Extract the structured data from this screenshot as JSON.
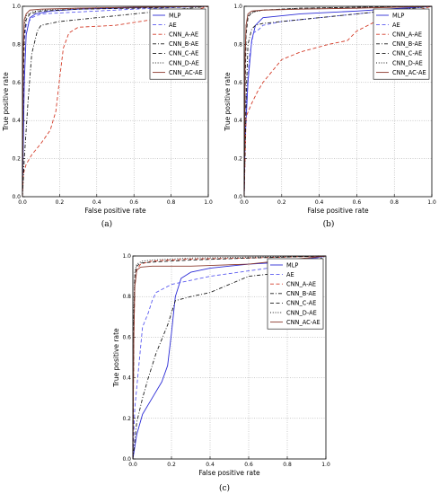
{
  "chart_data": [
    {
      "type": "line",
      "caption": "(a)",
      "xlabel": "False positive rate",
      "ylabel": "True positive rate",
      "xlim": [
        0,
        1
      ],
      "ylim": [
        0,
        1
      ],
      "xticks": [
        "0.0",
        "0.2",
        "0.4",
        "0.6",
        "0.8",
        "1.0"
      ],
      "yticks": [
        "0.0",
        "0.2",
        "0.4",
        "0.6",
        "0.8",
        "1.0"
      ],
      "grid": true,
      "legend_position": "top-right",
      "series": [
        {
          "name": "MLP",
          "color": "#2b2bd6",
          "dash": "solid",
          "x": [
            0,
            0.01,
            0.02,
            0.04,
            0.07,
            0.15,
            0.3,
            0.5,
            0.7,
            1.0
          ],
          "y": [
            0,
            0.6,
            0.85,
            0.94,
            0.96,
            0.975,
            0.985,
            0.99,
            0.995,
            1.0
          ]
        },
        {
          "name": "AE",
          "color": "#5a5af0",
          "dash": "dashed",
          "x": [
            0,
            0.005,
            0.01,
            0.02,
            0.05,
            0.1,
            0.3,
            0.6,
            1.0
          ],
          "y": [
            0,
            0.55,
            0.82,
            0.9,
            0.94,
            0.96,
            0.97,
            0.985,
            1.0
          ]
        },
        {
          "name": "CNN_A-AE",
          "color": "#d43d2a",
          "dash": "dashed",
          "x": [
            0,
            0.005,
            0.02,
            0.05,
            0.1,
            0.15,
            0.18,
            0.2,
            0.22,
            0.25,
            0.3,
            0.5,
            0.7,
            0.9,
            1.0
          ],
          "y": [
            0,
            0.12,
            0.17,
            0.22,
            0.28,
            0.35,
            0.45,
            0.62,
            0.78,
            0.86,
            0.89,
            0.9,
            0.93,
            0.97,
            1.0
          ]
        },
        {
          "name": "CNN_B-AE",
          "color": "#1a1a1a",
          "dash": "dashdot",
          "x": [
            0,
            0.01,
            0.03,
            0.05,
            0.08,
            0.1,
            0.2,
            0.4,
            0.7,
            1.0
          ],
          "y": [
            0,
            0.2,
            0.5,
            0.75,
            0.87,
            0.9,
            0.92,
            0.94,
            0.97,
            1.0
          ]
        },
        {
          "name": "CNN_C-AE",
          "color": "#1a1a1a",
          "dash": "dashed",
          "x": [
            0,
            0.005,
            0.01,
            0.02,
            0.04,
            0.1,
            0.3,
            0.6,
            1.0
          ],
          "y": [
            0,
            0.6,
            0.85,
            0.93,
            0.96,
            0.975,
            0.985,
            0.99,
            1.0
          ]
        },
        {
          "name": "CNN_D-AE",
          "color": "#1a1a1a",
          "dash": "dotted",
          "x": [
            0,
            0.005,
            0.01,
            0.02,
            0.05,
            0.1,
            0.3,
            1.0
          ],
          "y": [
            0,
            0.7,
            0.9,
            0.95,
            0.97,
            0.98,
            0.99,
            1.0
          ]
        },
        {
          "name": "CNN_AC-AE",
          "color": "#8b3a2e",
          "dash": "solid",
          "x": [
            0,
            0.005,
            0.01,
            0.02,
            0.04,
            0.1,
            0.3,
            0.6,
            1.0
          ],
          "y": [
            0,
            0.8,
            0.93,
            0.96,
            0.98,
            0.985,
            0.99,
            0.995,
            1.0
          ]
        }
      ]
    },
    {
      "type": "line",
      "caption": "(b)",
      "xlabel": "False positive rate",
      "ylabel": "True positive rate",
      "xlim": [
        0,
        1
      ],
      "ylim": [
        0,
        1
      ],
      "xticks": [
        "0.0",
        "0.2",
        "0.4",
        "0.6",
        "0.8",
        "1.0"
      ],
      "yticks": [
        "0.0",
        "0.2",
        "0.4",
        "0.6",
        "0.8",
        "1.0"
      ],
      "grid": true,
      "legend_position": "top-right",
      "series": [
        {
          "name": "MLP",
          "color": "#2b2bd6",
          "dash": "solid",
          "x": [
            0,
            0.005,
            0.02,
            0.04,
            0.06,
            0.1,
            0.3,
            0.6,
            1.0
          ],
          "y": [
            0,
            0.3,
            0.6,
            0.82,
            0.9,
            0.94,
            0.96,
            0.975,
            1.0
          ]
        },
        {
          "name": "AE",
          "color": "#5a5af0",
          "dash": "dashed",
          "x": [
            0,
            0.01,
            0.03,
            0.05,
            0.08,
            0.1,
            0.2,
            0.4,
            0.7,
            1.0
          ],
          "y": [
            0,
            0.5,
            0.75,
            0.86,
            0.88,
            0.9,
            0.92,
            0.94,
            0.97,
            1.0
          ]
        },
        {
          "name": "CNN_A-AE",
          "color": "#d43d2a",
          "dash": "dashed",
          "x": [
            0,
            0.01,
            0.04,
            0.07,
            0.1,
            0.15,
            0.2,
            0.3,
            0.45,
            0.55,
            0.6,
            0.7,
            0.85,
            1.0
          ],
          "y": [
            0,
            0.42,
            0.49,
            0.55,
            0.6,
            0.66,
            0.72,
            0.76,
            0.8,
            0.82,
            0.87,
            0.92,
            0.96,
            1.0
          ]
        },
        {
          "name": "CNN_B-AE",
          "color": "#1a1a1a",
          "dash": "dashdot",
          "x": [
            0,
            0.01,
            0.02,
            0.04,
            0.06,
            0.1,
            0.2,
            0.4,
            0.7,
            1.0
          ],
          "y": [
            0,
            0.5,
            0.8,
            0.88,
            0.9,
            0.91,
            0.92,
            0.94,
            0.97,
            1.0
          ]
        },
        {
          "name": "CNN_C-AE",
          "color": "#1a1a1a",
          "dash": "dashed",
          "x": [
            0,
            0.005,
            0.01,
            0.02,
            0.04,
            0.1,
            0.3,
            0.6,
            1.0
          ],
          "y": [
            0,
            0.55,
            0.85,
            0.94,
            0.97,
            0.98,
            0.99,
            0.995,
            1.0
          ]
        },
        {
          "name": "CNN_D-AE",
          "color": "#1a1a1a",
          "dash": "dotted",
          "x": [
            0,
            0.005,
            0.01,
            0.02,
            0.05,
            0.1,
            0.3,
            1.0
          ],
          "y": [
            0,
            0.7,
            0.9,
            0.95,
            0.97,
            0.98,
            0.99,
            1.0
          ]
        },
        {
          "name": "CNN_AC-AE",
          "color": "#8b3a2e",
          "dash": "solid",
          "x": [
            0,
            0.005,
            0.01,
            0.02,
            0.04,
            0.1,
            0.3,
            0.6,
            1.0
          ],
          "y": [
            0,
            0.75,
            0.9,
            0.96,
            0.975,
            0.98,
            0.985,
            0.99,
            1.0
          ]
        }
      ]
    },
    {
      "type": "line",
      "caption": "(c)",
      "xlabel": "False positive rate",
      "ylabel": "True positive rate",
      "xlim": [
        0,
        1
      ],
      "ylim": [
        0,
        1
      ],
      "xticks": [
        "0.0",
        "0.2",
        "0.4",
        "0.6",
        "0.8",
        "1.0"
      ],
      "yticks": [
        "0.0",
        "0.2",
        "0.4",
        "0.6",
        "0.8",
        "1.0"
      ],
      "grid": true,
      "legend_position": "top-right",
      "series": [
        {
          "name": "MLP",
          "color": "#2b2bd6",
          "dash": "solid",
          "x": [
            0,
            0.02,
            0.05,
            0.1,
            0.15,
            0.18,
            0.2,
            0.22,
            0.25,
            0.3,
            0.4,
            0.6,
            0.8,
            1.0
          ],
          "y": [
            0,
            0.12,
            0.22,
            0.3,
            0.38,
            0.46,
            0.62,
            0.8,
            0.89,
            0.92,
            0.94,
            0.96,
            0.97,
            1.0
          ]
        },
        {
          "name": "AE",
          "color": "#5a5af0",
          "dash": "dashed",
          "x": [
            0,
            0.01,
            0.03,
            0.05,
            0.08,
            0.1,
            0.12,
            0.2,
            0.4,
            0.7,
            1.0
          ],
          "y": [
            0,
            0.25,
            0.45,
            0.65,
            0.72,
            0.78,
            0.82,
            0.86,
            0.9,
            0.94,
            1.0
          ]
        },
        {
          "name": "CNN_A-AE",
          "color": "#d43d2a",
          "dash": "dashed",
          "x": [
            0,
            0.005,
            0.01,
            0.02,
            0.04,
            0.1,
            0.3,
            0.6,
            1.0
          ],
          "y": [
            0,
            0.6,
            0.85,
            0.93,
            0.96,
            0.975,
            0.985,
            0.99,
            1.0
          ]
        },
        {
          "name": "CNN_B-AE",
          "color": "#1a1a1a",
          "dash": "dashdot",
          "x": [
            0,
            0.02,
            0.05,
            0.08,
            0.12,
            0.18,
            0.22,
            0.3,
            0.4,
            0.5,
            0.6,
            0.7,
            0.85,
            1.0
          ],
          "y": [
            0,
            0.18,
            0.3,
            0.4,
            0.52,
            0.66,
            0.78,
            0.8,
            0.82,
            0.86,
            0.9,
            0.91,
            0.93,
            1.0
          ]
        },
        {
          "name": "CNN_C-AE",
          "color": "#1a1a1a",
          "dash": "dashed",
          "x": [
            0,
            0.005,
            0.01,
            0.02,
            0.04,
            0.1,
            0.3,
            0.6,
            1.0
          ],
          "y": [
            0,
            0.7,
            0.9,
            0.95,
            0.965,
            0.97,
            0.98,
            0.99,
            1.0
          ]
        },
        {
          "name": "CNN_D-AE",
          "color": "#1a1a1a",
          "dash": "dotted",
          "x": [
            0,
            0.005,
            0.01,
            0.02,
            0.05,
            0.1,
            0.3,
            1.0
          ],
          "y": [
            0,
            0.75,
            0.92,
            0.96,
            0.975,
            0.98,
            0.99,
            1.0
          ]
        },
        {
          "name": "CNN_AC-AE",
          "color": "#8b3a2e",
          "dash": "solid",
          "x": [
            0,
            0.005,
            0.01,
            0.02,
            0.04,
            0.1,
            0.3,
            0.6,
            1.0
          ],
          "y": [
            0,
            0.6,
            0.85,
            0.93,
            0.945,
            0.95,
            0.95,
            0.96,
            1.0
          ]
        }
      ]
    }
  ]
}
